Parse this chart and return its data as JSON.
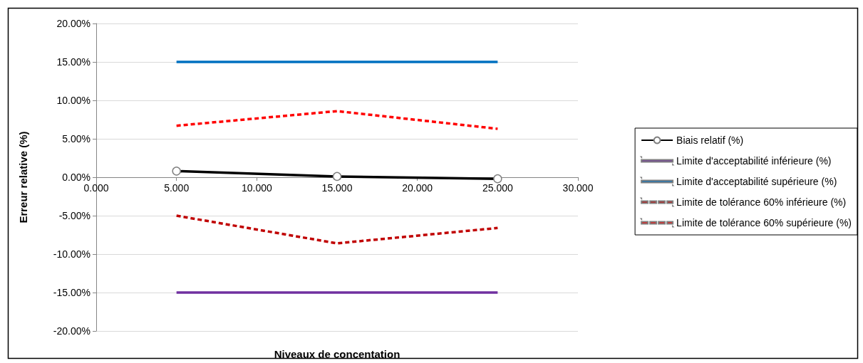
{
  "chart_data": {
    "type": "line",
    "xlabel": "Niveaux de concentation",
    "ylabel": "Erreur relative (%)",
    "x": [
      5,
      15,
      25
    ],
    "series": [
      {
        "name": "Biais relatif (%)",
        "color": "#000000",
        "values": [
          0.8,
          0.1,
          -0.2
        ],
        "marker": "circle",
        "line_style": "solid"
      },
      {
        "name": "Limite d'acceptabilité inférieure (%)",
        "color": "#7030a0",
        "values": [
          -15,
          -15,
          -15
        ],
        "marker": "none",
        "line_style": "solid"
      },
      {
        "name": "Limite d'acceptabilité supérieure (%)",
        "color": "#0070c0",
        "values": [
          15,
          15,
          15
        ],
        "marker": "none",
        "line_style": "solid"
      },
      {
        "name": "Limite de tolérance 60% inférieure (%)",
        "color": "#c00000",
        "values": [
          -5,
          -8.6,
          -6.6
        ],
        "marker": "none",
        "line_style": "dashed"
      },
      {
        "name": "Limite de tolérance 60% supérieure (%)",
        "color": "#ff0000",
        "values": [
          6.7,
          8.6,
          6.3
        ],
        "marker": "none",
        "line_style": "dashed"
      }
    ],
    "xlim": [
      0,
      30
    ],
    "xticks": [
      {
        "value": 0,
        "label": "0.000"
      },
      {
        "value": 5,
        "label": "5.000"
      },
      {
        "value": 10,
        "label": "10.000"
      },
      {
        "value": 15,
        "label": "15.000"
      },
      {
        "value": 20,
        "label": "20.000"
      },
      {
        "value": 25,
        "label": "25.000"
      },
      {
        "value": 30,
        "label": "30.000"
      }
    ],
    "ylim": [
      -20,
      20
    ],
    "yticks": [
      {
        "value": -20,
        "label": "-20.00%"
      },
      {
        "value": -15,
        "label": "-15.00%"
      },
      {
        "value": -10,
        "label": "-10.00%"
      },
      {
        "value": -5,
        "label": "-5.00%"
      },
      {
        "value": 0,
        "label": "0.00%"
      },
      {
        "value": 5,
        "label": "5.00%"
      },
      {
        "value": 10,
        "label": "10.00%"
      },
      {
        "value": 15,
        "label": "15.00%"
      },
      {
        "value": 20,
        "label": "20.00%"
      }
    ],
    "grid": "y",
    "legend": "right"
  }
}
